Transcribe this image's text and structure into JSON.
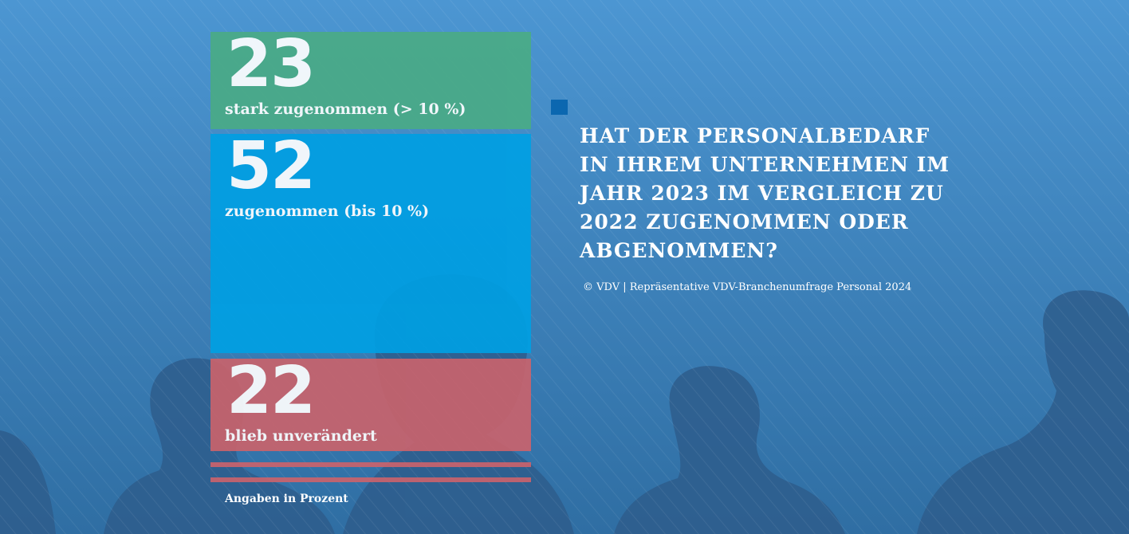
{
  "chart_data": {
    "type": "bar",
    "title": "Hat der Personalbedarf in Ihrem Unternehmen im Jahr 2023 im Vergleich zu 2022 zugenommen oder abgenommen?",
    "source": "© VDV | Repräsentative VDV-Branchenumfrage Personal 2024",
    "note": "Angaben in Prozent",
    "categories": [
      "stark zugenommen (> 10 %)",
      "zugenommen (bis 10 %)",
      "blieb unverändert"
    ],
    "values": [
      23,
      52,
      22
    ],
    "colors": [
      "#4aab86",
      "#009fe3",
      "#c9636c"
    ]
  },
  "colors": {
    "background_top": "#4a93cf",
    "background_bottom": "#2f6ea3",
    "silhouette": "#2e5d8c",
    "accent_square": "#0b67b0"
  }
}
